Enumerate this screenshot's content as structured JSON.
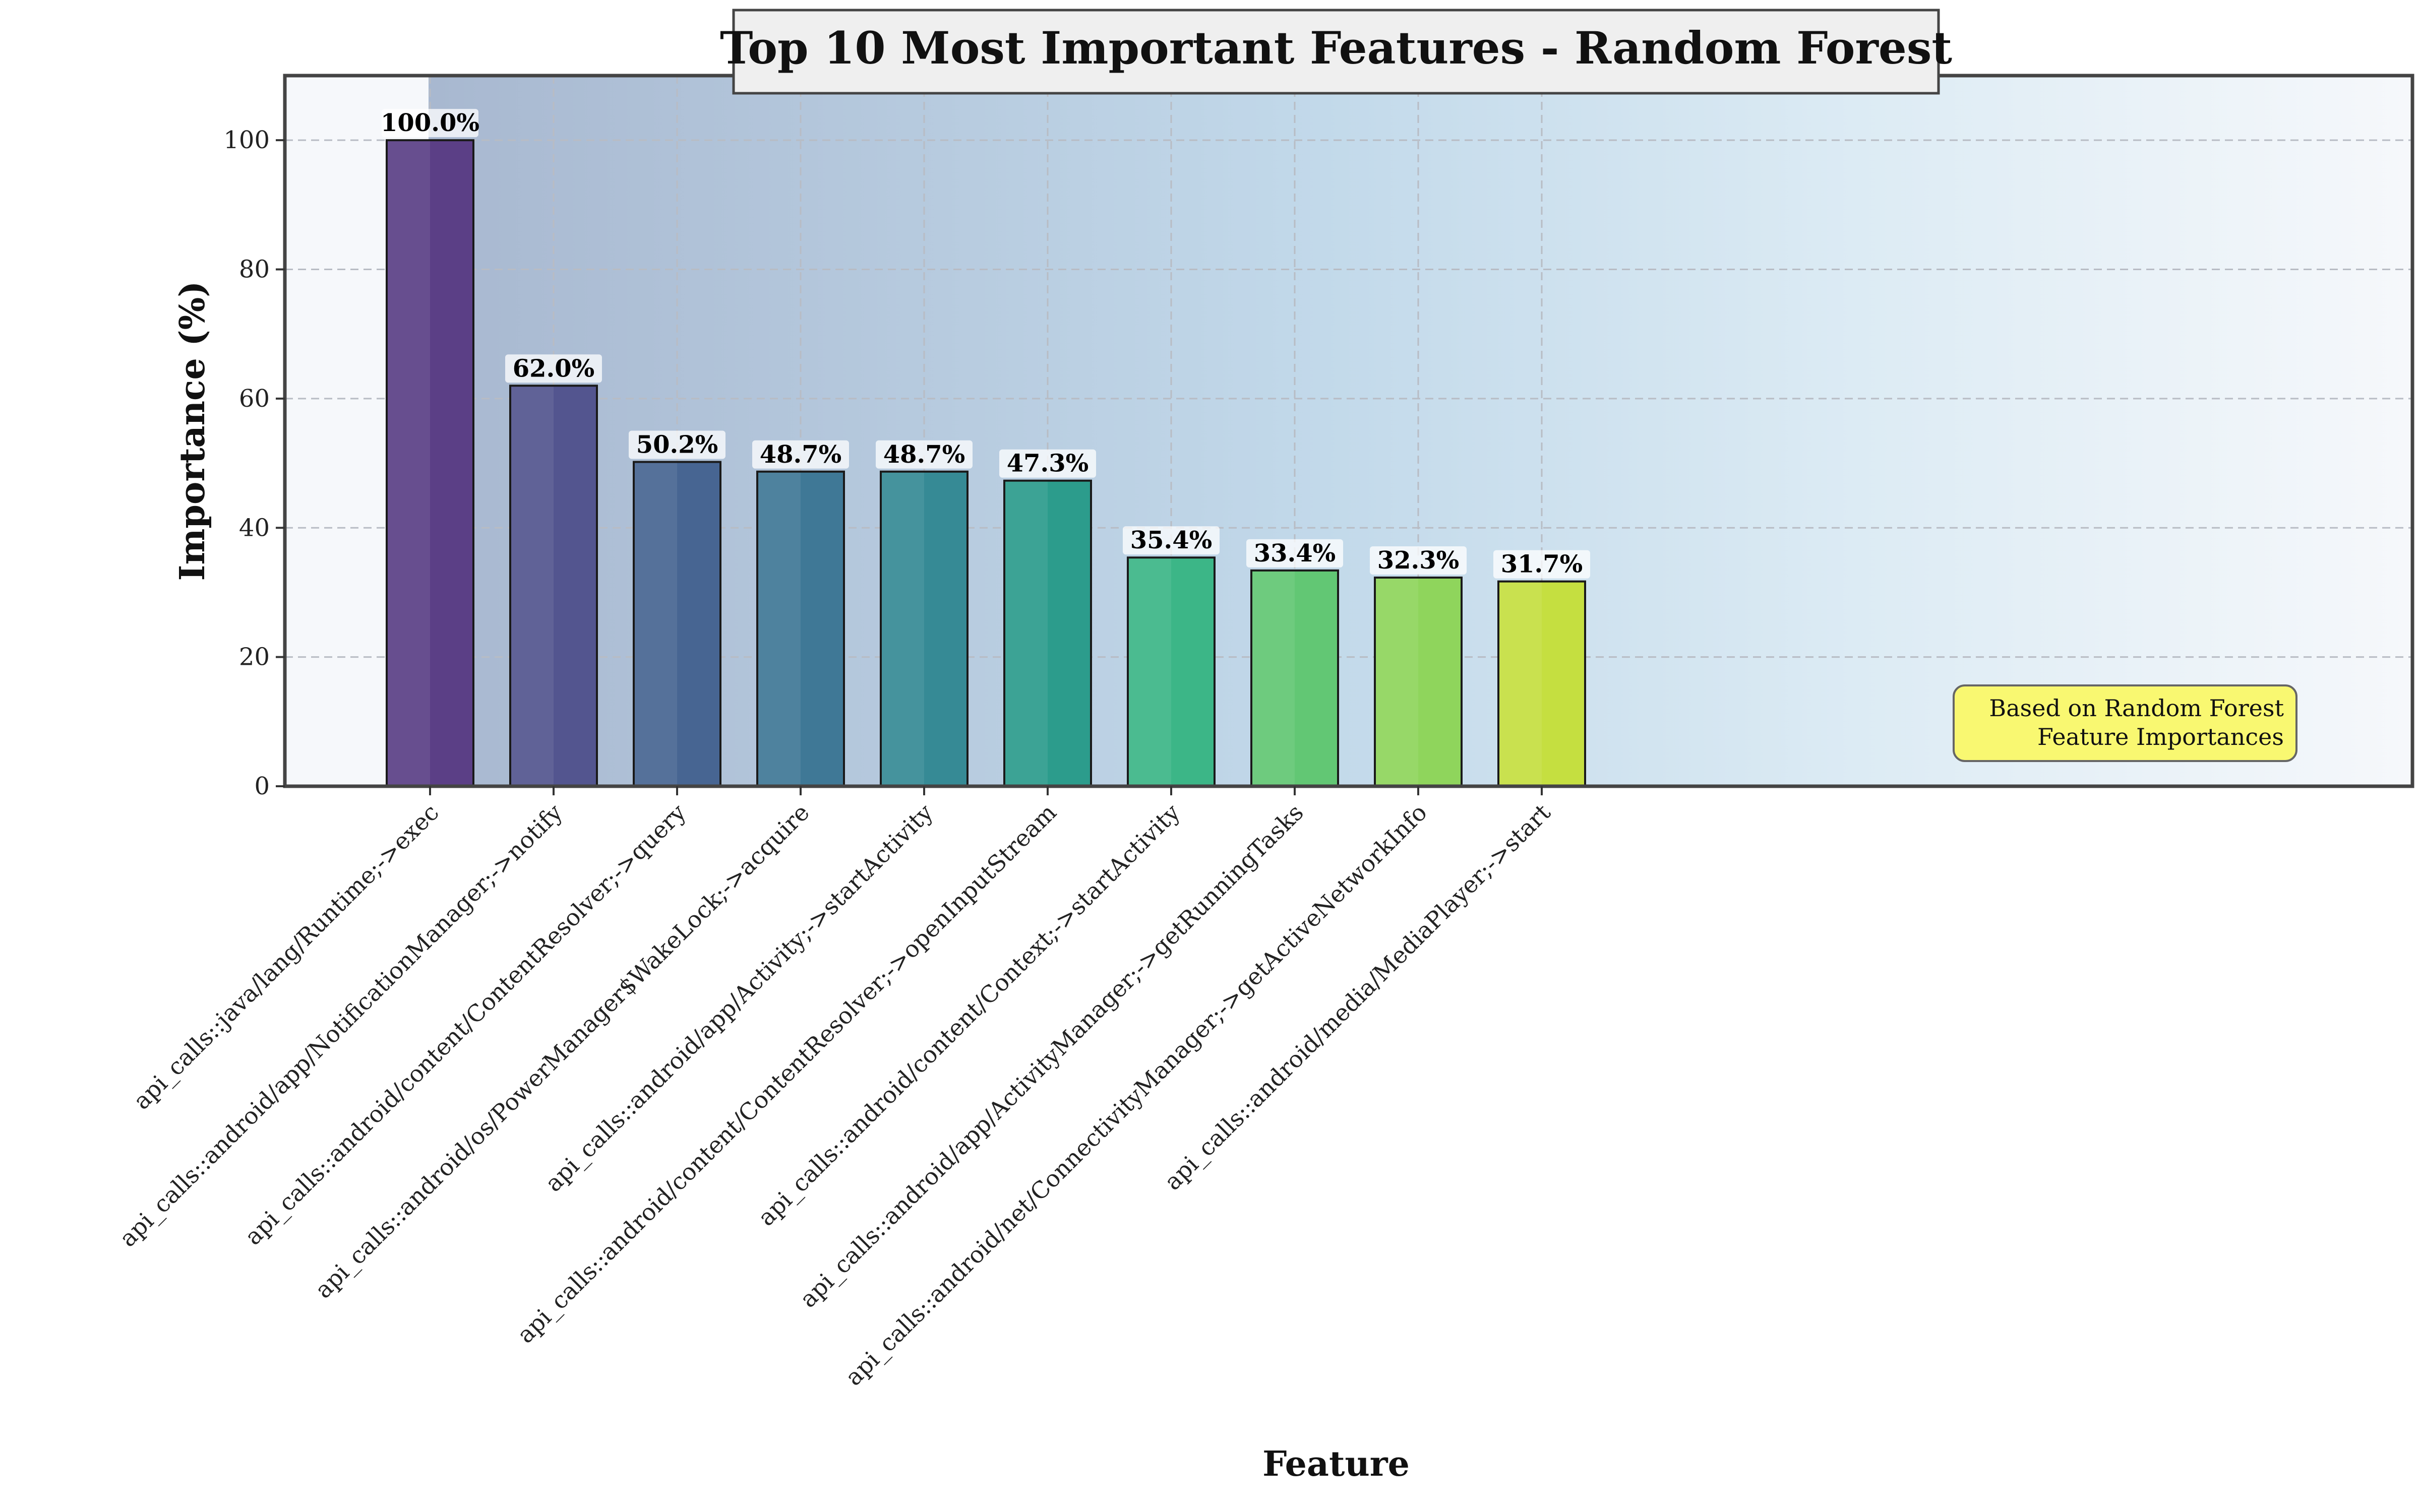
{
  "chart_data": {
    "type": "bar",
    "title": "Top 10 Most Important Features - Random Forest",
    "xlabel": "Feature",
    "ylabel": "Importance (%)",
    "ylim": [
      0,
      110
    ],
    "yticks": [
      0,
      20,
      40,
      60,
      80,
      100
    ],
    "grid": true,
    "categories": [
      "api_calls::java/lang/Runtime;->exec",
      "api_calls::android/app/NotificationManager;->notify",
      "api_calls::android/content/ContentResolver;->query",
      "api_calls::android/os/PowerManager$WakeLock;->acquire",
      "api_calls::android/app/Activity;->startActivity",
      "api_calls::android/content/ContentResolver;->openInputStream",
      "api_calls::android/content/Context;->startActivity",
      "api_calls::android/app/ActivityManager;->getRunningTasks",
      "api_calls::android/net/ConnectivityManager;->getActiveNetworkInfo",
      "api_calls::android/media/MediaPlayer;->start"
    ],
    "values": [
      100.0,
      62.0,
      50.2,
      48.7,
      48.7,
      47.3,
      35.4,
      33.4,
      32.3,
      31.7
    ],
    "value_labels": [
      "100.0%",
      "62.0%",
      "50.2%",
      "48.7%",
      "48.7%",
      "47.3%",
      "35.4%",
      "33.4%",
      "32.3%",
      "31.7%"
    ],
    "bar_colors": [
      "#5b3f86",
      "#53558f",
      "#476592",
      "#3f7896",
      "#368a95",
      "#2c9c8c",
      "#3cb687",
      "#62c774",
      "#8fd55c",
      "#c5df40"
    ],
    "annotation": {
      "lines": [
        "Based on Random Forest",
        "Feature Importances"
      ],
      "position": "bottom-right",
      "background": "#f9f871"
    }
  }
}
